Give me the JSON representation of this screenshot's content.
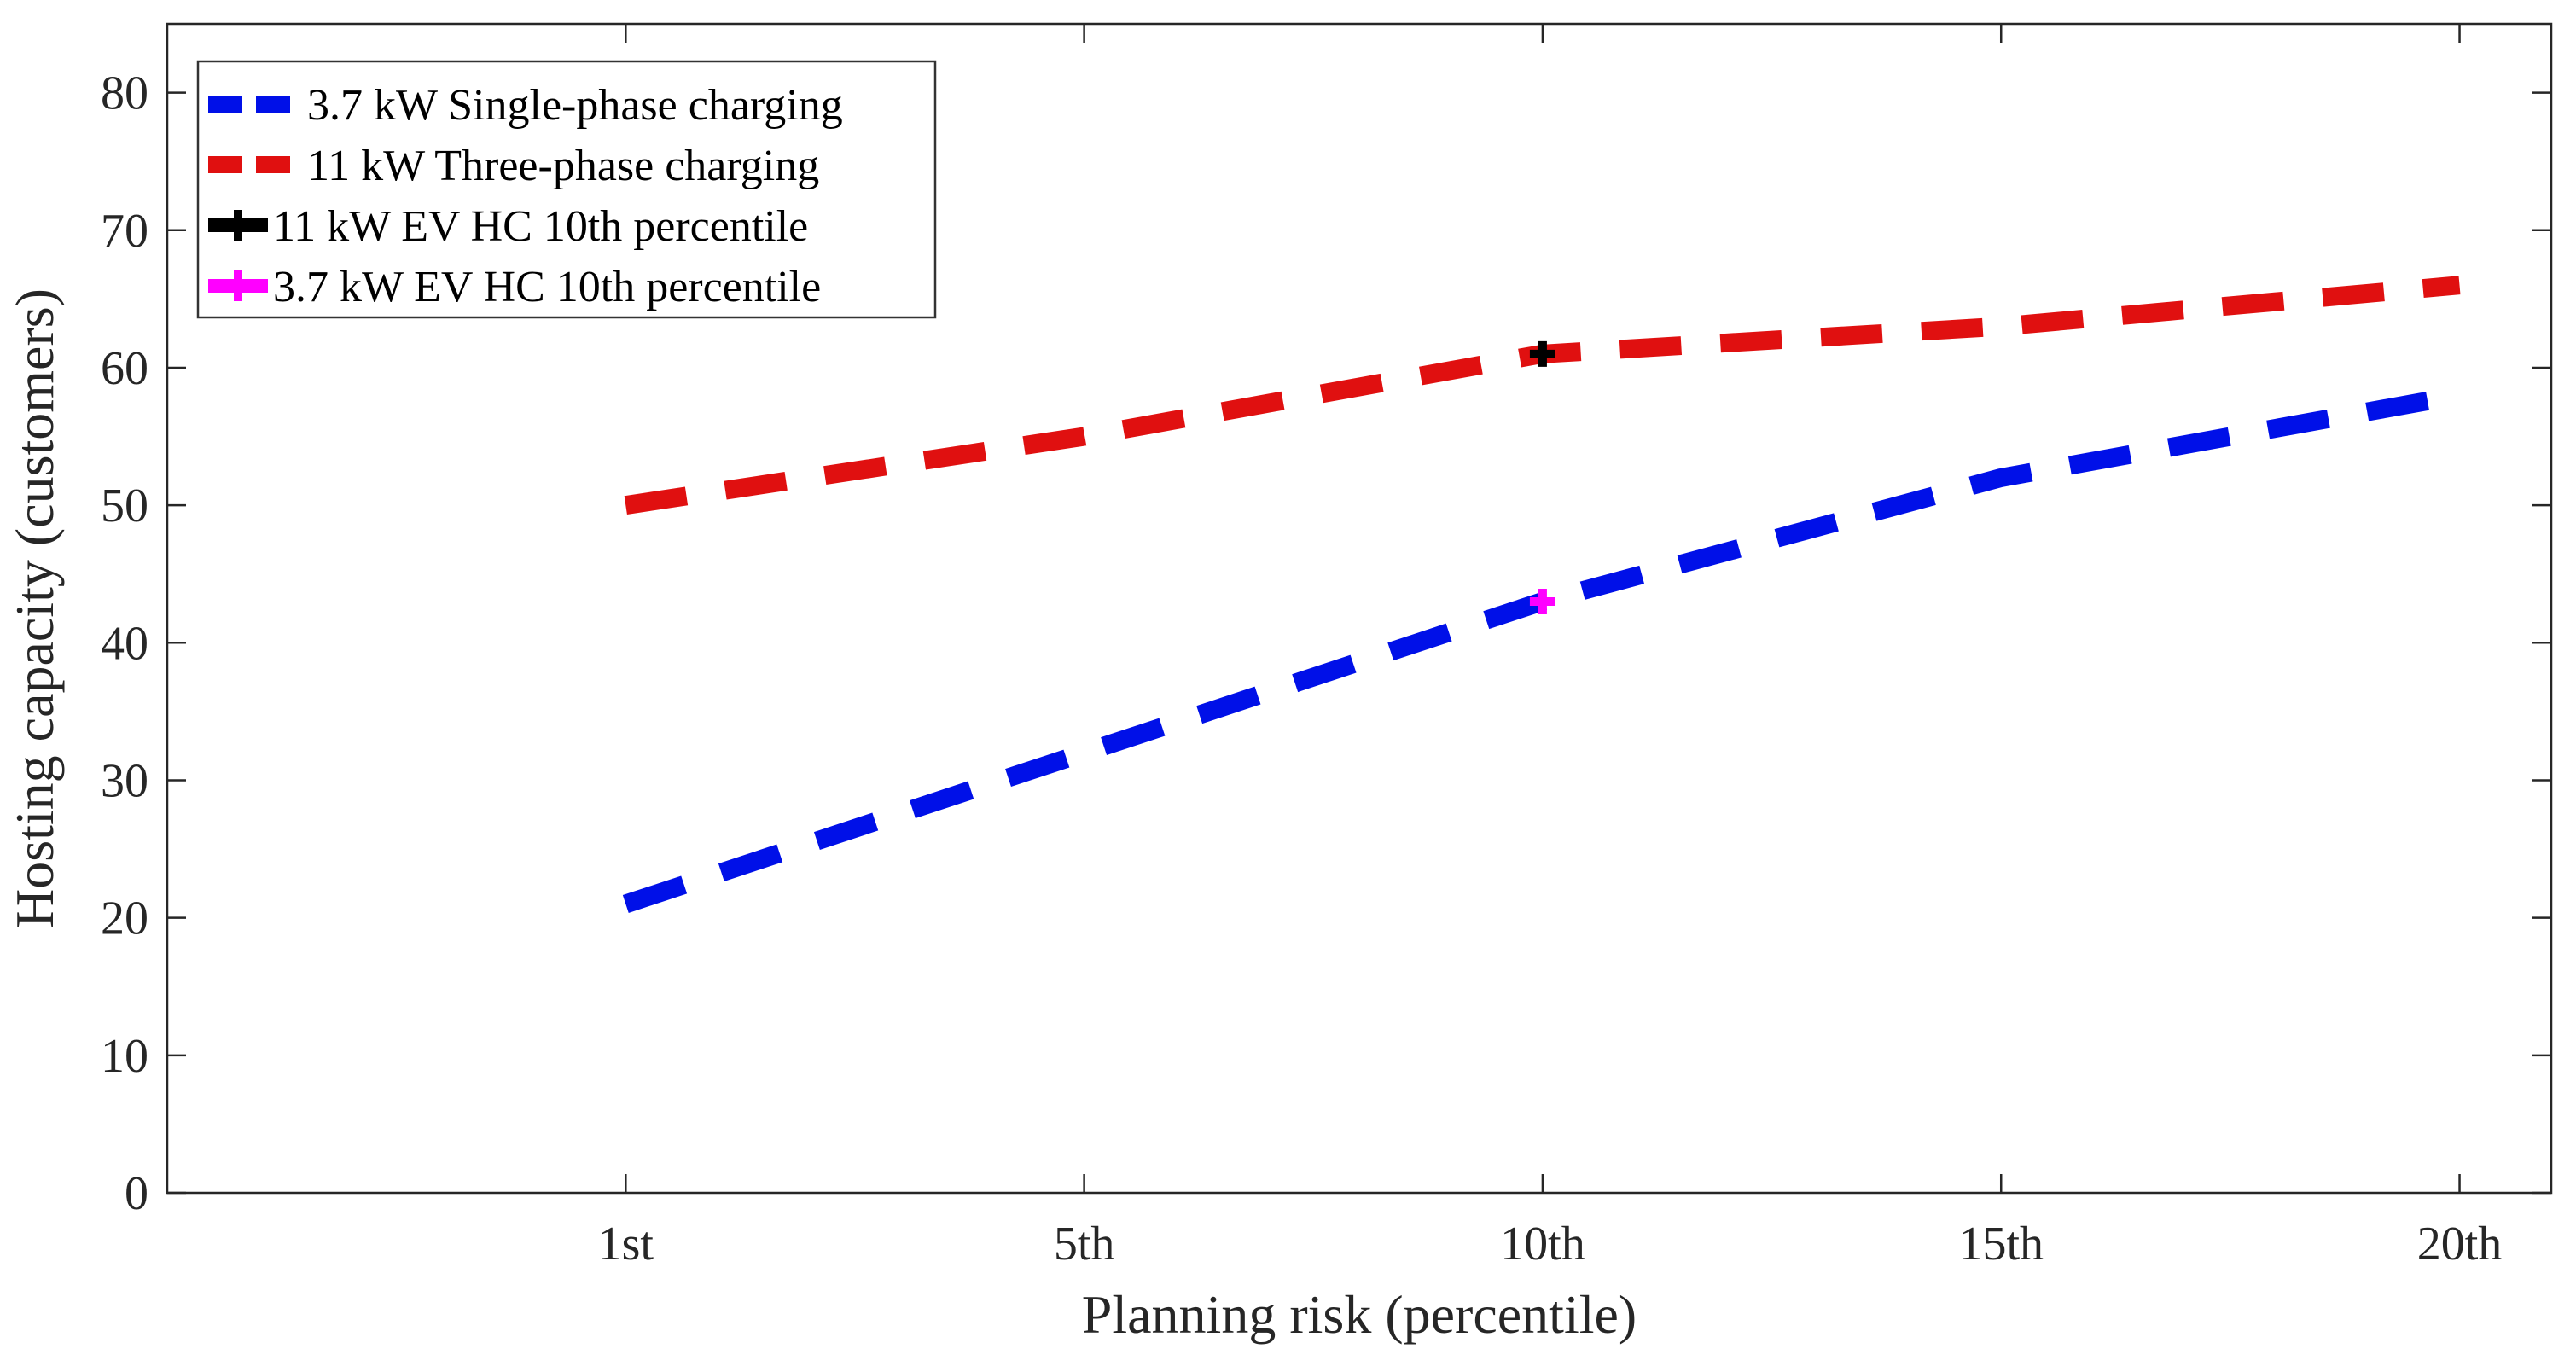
{
  "chart_data": {
    "type": "line",
    "title": "",
    "xlabel": "Planning risk (percentile)",
    "ylabel": "Hosting capacity (customers)",
    "categories": [
      "1st",
      "5th",
      "10th",
      "15th",
      "20th"
    ],
    "xlim": [
      0,
      5.2
    ],
    "ylim": [
      0,
      85
    ],
    "yticks": [
      0,
      10,
      20,
      30,
      40,
      50,
      60,
      70,
      80
    ],
    "grid": false,
    "legend_position": "top-left",
    "series": [
      {
        "name": "3.7 kW Single-phase charging",
        "style": "dashed-line",
        "color": "#0010e8",
        "values": [
          21,
          32,
          43,
          52,
          58
        ]
      },
      {
        "name": "11 kW Three-phase charging",
        "style": "dashed-line",
        "color": "#e01010",
        "values": [
          50,
          55,
          61,
          63,
          66
        ]
      },
      {
        "name": "11 kW EV HC 10th percentile",
        "style": "plus-marker",
        "color": "#000000",
        "points": [
          {
            "x": "10th",
            "y": 61
          }
        ]
      },
      {
        "name": "3.7 kW EV HC 10th percentile",
        "style": "plus-marker",
        "color": "#ff00ff",
        "points": [
          {
            "x": "10th",
            "y": 43
          }
        ]
      }
    ]
  }
}
